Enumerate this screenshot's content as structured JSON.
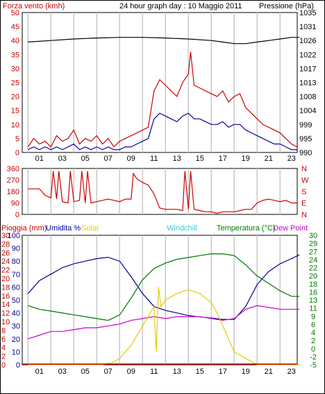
{
  "title": "24 hour graph day : 10 Maggio 2011",
  "colors": {
    "red": "#cc0000",
    "blue": "#000099",
    "black": "#000000",
    "green": "#007700",
    "magenta": "#cc00cc",
    "yellow": "#e6cc00",
    "cyan": "#33cccc",
    "grid": "#c8c8c8"
  },
  "x_ticks": [
    "01",
    "03",
    "05",
    "07",
    "09",
    "11",
    "13",
    "15",
    "17",
    "19",
    "21",
    "23"
  ],
  "chart_data": [
    {
      "type": "line",
      "name": "wind-pressure",
      "left_label": "Forza vento (kmh)",
      "right_label": "Pressione (hPa)",
      "left_ticks": [
        "0",
        "5",
        "10",
        "15",
        "20",
        "25",
        "30",
        "35",
        "40",
        "45",
        "50"
      ],
      "right_ticks": [
        "990",
        "995",
        "999",
        "1004",
        "1008",
        "1013",
        "1017",
        "1022",
        "1026",
        "1031",
        "1035"
      ],
      "ylim_left": [
        0,
        50
      ],
      "ylim_right": [
        990,
        1035
      ],
      "series": [
        {
          "color": "red",
          "axis": "left",
          "x": [
            0,
            0.5,
            1,
            1.5,
            2,
            2.5,
            3,
            3.5,
            4,
            4.5,
            5,
            5.5,
            6,
            6.5,
            7,
            7.5,
            8,
            8.5,
            9,
            9.5,
            10,
            10.5,
            11,
            11.5,
            12,
            12.5,
            13,
            13.5,
            14,
            14.2,
            14.5,
            15,
            15.5,
            16,
            16.5,
            17,
            17.5,
            18,
            18.5,
            19,
            19.5,
            20,
            20.5,
            21,
            21.5,
            22,
            22.5,
            23,
            23.5
          ],
          "y": [
            2,
            5,
            3,
            4,
            2,
            6,
            4,
            5,
            8,
            3,
            5,
            4,
            6,
            3,
            5,
            2,
            4,
            5,
            6,
            7,
            8,
            9,
            22,
            26,
            24,
            22,
            20,
            25,
            28,
            36,
            24,
            23,
            22,
            21,
            20,
            22,
            18,
            20,
            21,
            16,
            14,
            12,
            10,
            9,
            8,
            7,
            5,
            3,
            2
          ]
        },
        {
          "color": "blue",
          "axis": "left",
          "x": [
            0,
            0.5,
            1,
            1.5,
            2,
            2.5,
            3,
            3.5,
            4,
            4.5,
            5,
            5.5,
            6,
            6.5,
            7,
            7.5,
            8,
            8.5,
            9,
            9.5,
            10,
            10.5,
            11,
            11.5,
            12,
            12.5,
            13,
            13.5,
            14,
            14.5,
            15,
            15.5,
            16,
            16.5,
            17,
            17.5,
            18,
            18.5,
            19,
            19.5,
            20,
            20.5,
            21,
            21.5,
            22,
            22.5,
            23,
            23.5
          ],
          "y": [
            1,
            2,
            1,
            2,
            1,
            2,
            1,
            2,
            3,
            1,
            2,
            1,
            2,
            1,
            2,
            1,
            1,
            2,
            2,
            3,
            4,
            5,
            12,
            14,
            13,
            12,
            11,
            13,
            14,
            12,
            12,
            11,
            10,
            10,
            11,
            9,
            10,
            10,
            8,
            7,
            6,
            5,
            4,
            3,
            3,
            2,
            1,
            1
          ]
        },
        {
          "color": "black",
          "axis": "right",
          "x": [
            0,
            2,
            4,
            6,
            8,
            10,
            12,
            14,
            16,
            17,
            18,
            19,
            20,
            21,
            22,
            23,
            23.7
          ],
          "y": [
            1025.5,
            1026,
            1026.5,
            1026.8,
            1027,
            1027,
            1026.8,
            1026.5,
            1026,
            1025.5,
            1025,
            1025,
            1025.5,
            1026,
            1026.5,
            1027,
            1027
          ]
        }
      ]
    },
    {
      "type": "line",
      "name": "wind-direction",
      "left_ticks": [
        "0",
        "90",
        "180",
        "270",
        "360"
      ],
      "right_ticks": [
        "N",
        "E",
        "S",
        "W",
        "N"
      ],
      "ylim_left": [
        0,
        360
      ],
      "series": [
        {
          "color": "red",
          "axis": "left",
          "x": [
            0,
            0.5,
            1,
            1.5,
            2,
            2.2,
            2.5,
            2.7,
            3,
            3.5,
            3.7,
            4,
            4.5,
            4.7,
            5,
            5.2,
            5.5,
            6,
            6.5,
            7,
            7.5,
            8,
            8.5,
            9,
            9.2,
            9.5,
            10,
            10.5,
            11,
            11.5,
            12,
            12.5,
            13,
            13.5,
            13.7,
            14,
            14.2,
            14.5,
            15,
            15.5,
            16,
            16.5,
            17,
            17.5,
            18,
            18.5,
            19,
            19.5,
            20,
            20.5,
            21,
            21.5,
            22,
            22.5,
            23,
            23.5
          ],
          "y": [
            200,
            200,
            200,
            150,
            130,
            340,
            120,
            340,
            100,
            90,
            340,
            100,
            110,
            340,
            90,
            340,
            90,
            100,
            110,
            120,
            110,
            100,
            120,
            120,
            320,
            280,
            250,
            230,
            160,
            50,
            40,
            40,
            40,
            30,
            340,
            40,
            340,
            40,
            30,
            20,
            20,
            10,
            20,
            20,
            20,
            30,
            40,
            40,
            90,
            110,
            120,
            110,
            100,
            110,
            90,
            90
          ]
        }
      ]
    },
    {
      "type": "line",
      "name": "rain-humidity-temperature",
      "top_labels": [
        "Pioggia (mm)",
        "Umidita %",
        "Solar",
        "Windchill",
        "Temperatura (°C)",
        "Dew Point"
      ],
      "left_rain_ticks": [
        "0",
        "2",
        "4",
        "6",
        "8",
        "10",
        "12",
        "14",
        "16",
        "18",
        "20",
        "22",
        "24",
        "26",
        "28",
        "30"
      ],
      "left_hum_ticks": [
        "0",
        "10",
        "20",
        "30",
        "40",
        "50",
        "60",
        "70",
        "80",
        "90",
        "100"
      ],
      "right_temp_ticks": [
        "-5",
        "-2",
        "0",
        "2",
        "4",
        "6",
        "9",
        "11",
        "13",
        "16",
        "18",
        "20",
        "22",
        "24",
        "27",
        "29",
        "30"
      ],
      "ylim_hum": [
        0,
        100
      ],
      "ylim_temp": [
        -5,
        30
      ],
      "series": [
        {
          "color": "blue",
          "axis": "hum",
          "x": [
            0,
            1,
            2,
            3,
            4,
            5,
            6,
            7,
            8,
            9,
            10,
            11,
            12,
            13,
            14,
            15,
            16,
            17,
            18,
            19,
            20,
            21,
            22,
            23,
            23.7
          ],
          "y": [
            55,
            65,
            70,
            75,
            78,
            80,
            82,
            83,
            80,
            68,
            55,
            45,
            42,
            40,
            38,
            37,
            36,
            35,
            35,
            45,
            62,
            72,
            78,
            82,
            85
          ]
        },
        {
          "color": "green",
          "axis": "temp",
          "x": [
            0,
            1,
            2,
            3,
            4,
            5,
            6,
            7,
            8,
            9,
            10,
            11,
            12,
            13,
            14,
            15,
            16,
            17,
            18,
            19,
            20,
            21,
            22,
            23,
            23.7
          ],
          "y": [
            11,
            10,
            9.5,
            9,
            8.5,
            8,
            7.5,
            7,
            8.5,
            13,
            18,
            21,
            22.5,
            23.5,
            24,
            24.5,
            25,
            25,
            24.5,
            22,
            19,
            17,
            15,
            13.5,
            13.5
          ]
        },
        {
          "color": "magenta",
          "axis": "temp",
          "x": [
            0,
            1,
            2,
            3,
            4,
            5,
            6,
            7,
            8,
            9,
            10,
            11,
            12,
            13,
            14,
            15,
            16,
            17,
            18,
            19,
            20,
            21,
            22,
            23,
            23.7
          ],
          "y": [
            2,
            3,
            4,
            4,
            4.5,
            5,
            5,
            5.5,
            6,
            7,
            7.5,
            8,
            7.5,
            8,
            8,
            8,
            7.5,
            7,
            7.5,
            10,
            11,
            10.5,
            10,
            10,
            10
          ]
        },
        {
          "color": "yellow",
          "axis": "hum",
          "x": [
            0,
            5,
            6,
            6.5,
            7,
            7.5,
            8,
            9,
            10,
            11,
            11.2,
            11.4,
            11.6,
            12,
            13,
            14,
            15,
            16,
            16.5,
            17,
            17.5,
            18,
            19,
            20,
            23.7
          ],
          "y": [
            0,
            0,
            0,
            0,
            1,
            2,
            5,
            15,
            30,
            45,
            10,
            60,
            45,
            50,
            55,
            58,
            55,
            48,
            40,
            30,
            20,
            10,
            5,
            0,
            0
          ]
        }
      ]
    }
  ]
}
